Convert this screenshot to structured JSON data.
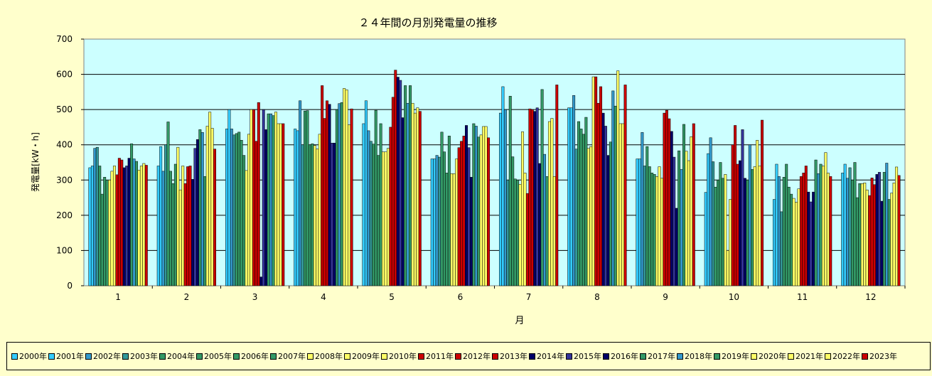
{
  "chart_data": {
    "type": "bar",
    "title": "２４年間の月別発電量の推移",
    "xlabel": "月",
    "ylabel": "発電量[kW・h]",
    "ylim": [
      0,
      700
    ],
    "yticks": [
      "0",
      "100",
      "200",
      "300",
      "400",
      "500",
      "600",
      "700"
    ],
    "grid": true,
    "legend_position": "bottom",
    "categories": [
      "1",
      "2",
      "3",
      "4",
      "5",
      "6",
      "7",
      "8",
      "9",
      "10",
      "11",
      "12"
    ],
    "series": [
      {
        "name": "2000年",
        "color": "#33ccff",
        "values": [
          335,
          340,
          445,
          445,
          460,
          360,
          490,
          505,
          360,
          265,
          245,
          320
        ]
      },
      {
        "name": "2001年",
        "color": "#33ccff",
        "values": [
          340,
          395,
          500,
          440,
          525,
          360,
          565,
          505,
          360,
          375,
          345,
          345
        ]
      },
      {
        "name": "2002年",
        "color": "#3399cc",
        "values": [
          390,
          325,
          445,
          525,
          440,
          370,
          500,
          540,
          435,
          420,
          310,
          305
        ]
      },
      {
        "name": "2003年",
        "color": "#339999",
        "values": [
          393,
          400,
          428,
          400,
          410,
          365,
          300,
          388,
          340,
          352,
          210,
          335
        ]
      },
      {
        "name": "2004年",
        "color": "#339966",
        "values": [
          340,
          465,
          432,
          496,
          402,
          436,
          538,
          466,
          395,
          280,
          308,
          300
        ]
      },
      {
        "name": "2005年",
        "color": "#339966",
        "values": [
          260,
          325,
          436,
          497,
          498,
          380,
          366,
          445,
          338,
          300,
          345,
          350
        ]
      },
      {
        "name": "2006年",
        "color": "#339966",
        "values": [
          308,
          290,
          413,
          400,
          370,
          320,
          303,
          430,
          320,
          350,
          280,
          250
        ]
      },
      {
        "name": "2007年",
        "color": "#339966",
        "values": [
          300,
          345,
          370,
          403,
          460,
          425,
          300,
          478,
          316,
          305,
          260,
          290
        ]
      },
      {
        "name": "2008年",
        "color": "#ffff66",
        "values": [
          300,
          393,
          327,
          398,
          380,
          318,
          288,
          390,
          310,
          316,
          248,
          290
        ]
      },
      {
        "name": "2009年",
        "color": "#ffff66",
        "values": [
          325,
          272,
          430,
          388,
          380,
          318,
          437,
          395,
          338,
          100,
          237,
          292
        ]
      },
      {
        "name": "2010年",
        "color": "#ffff66",
        "values": [
          340,
          340,
          500,
          430,
          390,
          360,
          320,
          593,
          305,
          245,
          275,
          272
        ]
      },
      {
        "name": "2011年",
        "color": "#cc0000",
        "values": [
          315,
          290,
          500,
          568,
          450,
          392,
          262,
          593,
          490,
          400,
          310,
          256
        ]
      },
      {
        "name": "2012年",
        "color": "#cc0000",
        "values": [
          362,
          338,
          410,
          475,
          535,
          410,
          502,
          518,
          498,
          455,
          320,
          306
        ]
      },
      {
        "name": "2013年",
        "color": "#cc0000",
        "values": [
          357,
          340,
          520,
          525,
          612,
          425,
          500,
          565,
          474,
          345,
          340,
          287
        ]
      },
      {
        "name": "2014年",
        "color": "#000066",
        "values": [
          335,
          302,
          25,
          515,
          592,
          455,
          495,
          490,
          438,
          355,
          266,
          316
        ]
      },
      {
        "name": "2015年",
        "color": "#333399",
        "values": [
          340,
          390,
          500,
          405,
          583,
          392,
          505,
          453,
          365,
          443,
          238,
          322
        ]
      },
      {
        "name": "2016年",
        "color": "#000066",
        "values": [
          362,
          415,
          443,
          405,
          477,
          308,
          347,
          370,
          220,
          305,
          266,
          240
        ]
      },
      {
        "name": "2017年",
        "color": "#339966",
        "values": [
          403,
          443,
          488,
          500,
          568,
          460,
          557,
          408,
          383,
          300,
          357,
          322
        ]
      },
      {
        "name": "2018年",
        "color": "#3399cc",
        "values": [
          360,
          435,
          488,
          517,
          518,
          453,
          373,
          553,
          330,
          400,
          318,
          348
        ]
      },
      {
        "name": "2019年",
        "color": "#339966",
        "values": [
          353,
          310,
          483,
          520,
          568,
          422,
          310,
          510,
          458,
          330,
          345,
          245
        ]
      },
      {
        "name": "2020年",
        "color": "#ffff66",
        "values": [
          328,
          453,
          493,
          560,
          518,
          428,
          466,
          610,
          382,
          338,
          340,
          263
        ]
      },
      {
        "name": "2021年",
        "color": "#ffff66",
        "values": [
          340,
          493,
          460,
          556,
          490,
          452,
          475,
          460,
          355,
          413,
          378,
          292
        ]
      },
      {
        "name": "2022年",
        "color": "#ffff66",
        "values": [
          347,
          447,
          460,
          457,
          505,
          452,
          310,
          460,
          423,
          340,
          320,
          337
        ]
      },
      {
        "name": "2023年",
        "color": "#cc0000",
        "values": [
          342,
          388,
          460,
          502,
          495,
          420,
          570,
          570,
          460,
          470,
          310,
          313
        ]
      }
    ]
  }
}
